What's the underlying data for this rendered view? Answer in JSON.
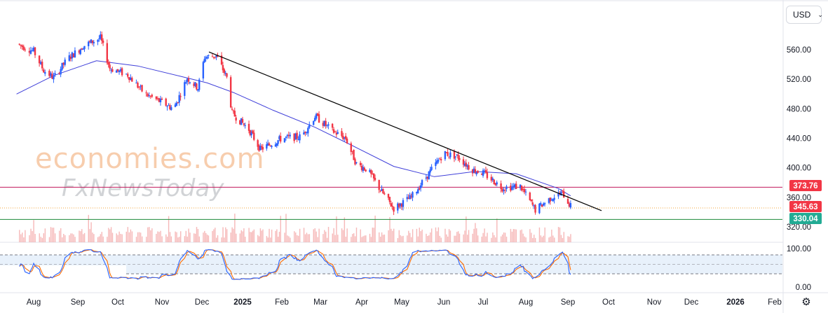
{
  "currency": "USD",
  "watermark": {
    "brand": "economies.com",
    "sub": "FxNewsToday"
  },
  "chart_data": {
    "type": "candlestick",
    "x_ticks": [
      "Aug",
      "Sep",
      "Oct",
      "Nov",
      "Dec",
      "2025",
      "Feb",
      "Mar",
      "Apr",
      "May",
      "Jun",
      "Jul",
      "Aug",
      "Sep",
      "Oct",
      "Nov",
      "Dec",
      "2026",
      "Feb"
    ],
    "price_ticks": [
      "560.00",
      "520.00",
      "480.00",
      "440.00",
      "400.00",
      "360.00",
      "320.00"
    ],
    "price_tick_values": [
      560,
      520,
      480,
      440,
      400,
      360,
      320
    ],
    "ylim": [
      315,
      585
    ],
    "levels": [
      {
        "label": "373.76",
        "value": 373.76,
        "color": "#f23645"
      },
      {
        "label": "345.63",
        "value": 345.63,
        "color": "#f23645"
      },
      {
        "label": "330.04",
        "value": 330.04,
        "color": "#22ab94"
      }
    ],
    "candle_colors": {
      "up": "#2962ff",
      "down": "#f23645"
    },
    "moving_average_color": "#3f3fd9",
    "trendline": {
      "color": "#000000",
      "from": {
        "x": "2024-12-01",
        "y": 557
      },
      "to": {
        "x": "2025-10-01",
        "y": 342
      }
    },
    "price_path": [
      {
        "x": "2024-07-20",
        "y": 568
      },
      {
        "x": "2024-08-01",
        "y": 558
      },
      {
        "x": "2024-08-08",
        "y": 532
      },
      {
        "x": "2024-08-15",
        "y": 522
      },
      {
        "x": "2024-08-25",
        "y": 548
      },
      {
        "x": "2024-09-05",
        "y": 565
      },
      {
        "x": "2024-09-18",
        "y": 576
      },
      {
        "x": "2024-09-25",
        "y": 535
      },
      {
        "x": "2024-10-08",
        "y": 526
      },
      {
        "x": "2024-10-20",
        "y": 500
      },
      {
        "x": "2024-11-10",
        "y": 480
      },
      {
        "x": "2024-11-20",
        "y": 522
      },
      {
        "x": "2024-11-28",
        "y": 508
      },
      {
        "x": "2024-12-03",
        "y": 550
      },
      {
        "x": "2024-12-12",
        "y": 552
      },
      {
        "x": "2024-12-20",
        "y": 522
      },
      {
        "x": "2024-12-24",
        "y": 474
      },
      {
        "x": "2025-01-06",
        "y": 452
      },
      {
        "x": "2025-01-15",
        "y": 425
      },
      {
        "x": "2025-02-01",
        "y": 440
      },
      {
        "x": "2025-02-15",
        "y": 442
      },
      {
        "x": "2025-02-25",
        "y": 470
      },
      {
        "x": "2025-03-10",
        "y": 450
      },
      {
        "x": "2025-03-20",
        "y": 440
      },
      {
        "x": "2025-03-28",
        "y": 405
      },
      {
        "x": "2025-04-05",
        "y": 398
      },
      {
        "x": "2025-04-15",
        "y": 370
      },
      {
        "x": "2025-04-25",
        "y": 345
      },
      {
        "x": "2025-05-08",
        "y": 360
      },
      {
        "x": "2025-05-20",
        "y": 390
      },
      {
        "x": "2025-06-01",
        "y": 420
      },
      {
        "x": "2025-06-12",
        "y": 415
      },
      {
        "x": "2025-06-22",
        "y": 398
      },
      {
        "x": "2025-07-01",
        "y": 393
      },
      {
        "x": "2025-07-15",
        "y": 373
      },
      {
        "x": "2025-07-28",
        "y": 375
      },
      {
        "x": "2025-08-08",
        "y": 343
      },
      {
        "x": "2025-08-20",
        "y": 360
      },
      {
        "x": "2025-08-28",
        "y": 366
      },
      {
        "x": "2025-09-03",
        "y": 348
      }
    ],
    "moving_average": [
      {
        "x": "2024-07-20",
        "y": 500
      },
      {
        "x": "2024-08-15",
        "y": 525
      },
      {
        "x": "2024-09-15",
        "y": 545
      },
      {
        "x": "2024-10-15",
        "y": 538
      },
      {
        "x": "2024-11-15",
        "y": 524
      },
      {
        "x": "2024-12-05",
        "y": 515
      },
      {
        "x": "2024-12-25",
        "y": 502
      },
      {
        "x": "2025-01-25",
        "y": 478
      },
      {
        "x": "2025-02-25",
        "y": 455
      },
      {
        "x": "2025-03-25",
        "y": 430
      },
      {
        "x": "2025-04-25",
        "y": 402
      },
      {
        "x": "2025-05-25",
        "y": 388
      },
      {
        "x": "2025-06-25",
        "y": 395
      },
      {
        "x": "2025-07-25",
        "y": 392
      },
      {
        "x": "2025-08-25",
        "y": 372
      },
      {
        "x": "2025-09-03",
        "y": 362
      }
    ],
    "oscillator": {
      "ticks": [
        "100.00",
        "0.00"
      ],
      "ylim": [
        0,
        100
      ],
      "upper": 80,
      "lower": 20,
      "k_color": "#2962ff",
      "d_color": "#ff6d00",
      "band_fill": "#e8f1fb"
    },
    "volume_color": "#f4a6a6"
  }
}
